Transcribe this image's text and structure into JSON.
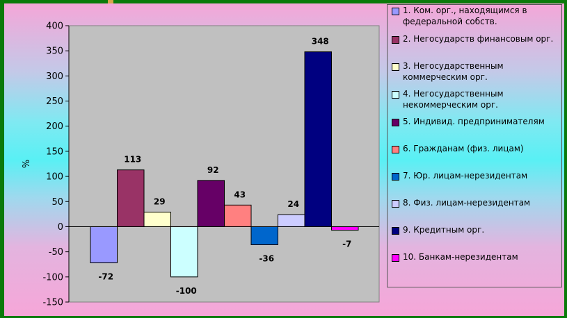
{
  "chart_data": {
    "type": "bar",
    "ylabel": "%",
    "ylim": [
      -150,
      400
    ],
    "yticks": [
      400,
      350,
      300,
      250,
      200,
      150,
      100,
      50,
      0,
      -50,
      -100,
      -150
    ],
    "series": [
      {
        "name": "1. Ком. орг., находящимся в\nфедеральной собств.",
        "value": -72,
        "color": "#9999ff"
      },
      {
        "name": "2. Негосударств финансовым орг.",
        "value": 113,
        "color": "#993366"
      },
      {
        "name": "3. Негосударственным\nкоммерческим орг.",
        "value": 29,
        "color": "#ffffcc"
      },
      {
        "name": "4. Негосударственным\nнекоммерческим орг.",
        "value": -100,
        "color": "#ccffff"
      },
      {
        "name": "5. Индивид. предпринимателям",
        "value": 92,
        "color": "#660066"
      },
      {
        "name": "6. Гражданам (физ. лицам)",
        "value": 43,
        "color": "#ff8080"
      },
      {
        "name": "7. Юр. лицам-нерезидентам",
        "value": -36,
        "color": "#0066cc"
      },
      {
        "name": "8. Физ. лицам-нерезидентам",
        "value": 24,
        "color": "#ccccff"
      },
      {
        "name": "9. Кредитным орг.",
        "value": 348,
        "color": "#000080"
      },
      {
        "name": "10. Банкам-нерезидентам",
        "value": -7,
        "color": "#ff00ff"
      }
    ],
    "legend_position": "right",
    "grid": false
  }
}
